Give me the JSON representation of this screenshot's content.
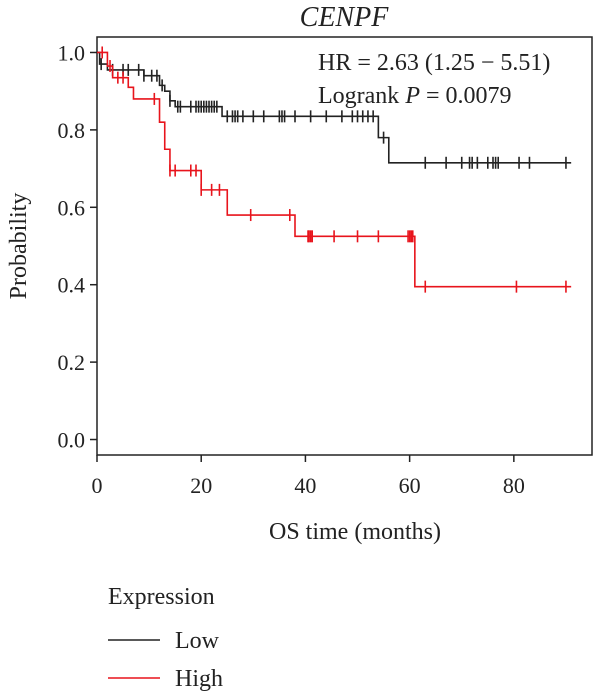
{
  "chart_data": {
    "type": "line",
    "title": "CENPF",
    "xlabel": "OS time (months)",
    "ylabel": "Probability",
    "xlim": [
      0,
      95
    ],
    "ylim": [
      -0.04,
      1.04
    ],
    "xticks": [
      "0",
      "20",
      "40",
      "60",
      "80"
    ],
    "xtick_values": [
      0,
      20,
      40,
      60,
      80
    ],
    "yticks": [
      "0.0",
      "0.2",
      "0.4",
      "0.6",
      "0.8",
      "1.0"
    ],
    "ytick_values": [
      0.0,
      0.2,
      0.4,
      0.6,
      0.8,
      1.0
    ],
    "grid": false,
    "legend": {
      "title": "Expression",
      "position": "bottom-left"
    },
    "annotations": {
      "hr": "HR = 2.63 (1.25 − 5.51)",
      "logrank_prefix": "Logrank ",
      "logrank_p": "P",
      "logrank_value": " = 0.0079"
    },
    "series": [
      {
        "name": "Low",
        "color": "#222222",
        "steps": [
          [
            0,
            1.0
          ],
          [
            0.5,
            0.97
          ],
          [
            2,
            0.955
          ],
          [
            9,
            0.94
          ],
          [
            12,
            0.915
          ],
          [
            13,
            0.9
          ],
          [
            14,
            0.875
          ],
          [
            15,
            0.86
          ],
          [
            24,
            0.835
          ],
          [
            54,
            0.78
          ],
          [
            56,
            0.715
          ],
          [
            91,
            0.715
          ]
        ],
        "censors": [
          0.8,
          3,
          5,
          6,
          8,
          9,
          10.5,
          11.5,
          12.5,
          14,
          15.5,
          16,
          18,
          19,
          19.5,
          20,
          20.5,
          21,
          21.5,
          22,
          22.5,
          23,
          25,
          26,
          26.5,
          27,
          28,
          30,
          32,
          35,
          35.5,
          36,
          38,
          41,
          44,
          47,
          49,
          50,
          51,
          52,
          53,
          55,
          63,
          67,
          70,
          71.5,
          72,
          73,
          75,
          76,
          76.5,
          77,
          81,
          83,
          90
        ]
      },
      {
        "name": "High",
        "color": "#e8141c",
        "steps": [
          [
            0,
            1.0
          ],
          [
            2,
            0.965
          ],
          [
            3,
            0.935
          ],
          [
            6,
            0.91
          ],
          [
            7,
            0.88
          ],
          [
            12,
            0.82
          ],
          [
            13,
            0.75
          ],
          [
            14,
            0.695
          ],
          [
            20,
            0.645
          ],
          [
            25,
            0.58
          ],
          [
            38,
            0.525
          ],
          [
            61,
            0.395
          ],
          [
            91,
            0.395
          ]
        ],
        "censors": [
          1,
          2.5,
          4,
          5,
          11,
          14,
          15,
          18,
          19,
          20,
          22,
          23.5,
          29.5,
          37,
          40.5,
          40.7,
          41,
          41.3,
          45.5,
          50,
          54,
          59.7,
          60,
          60.3,
          60.6,
          63,
          80.5,
          90
        ]
      }
    ]
  }
}
